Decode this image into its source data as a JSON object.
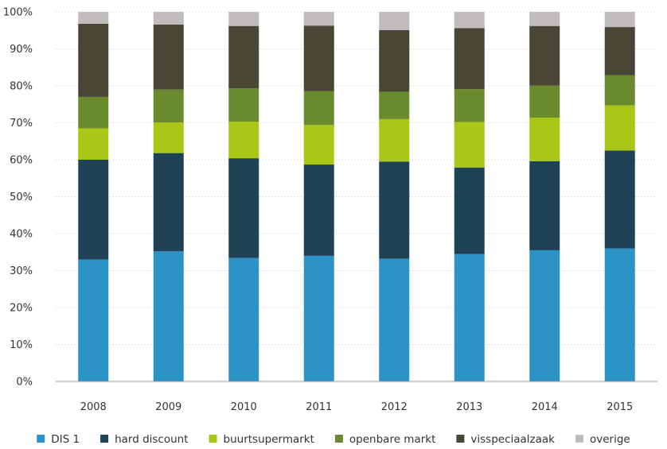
{
  "chart_data": {
    "type": "bar",
    "stacked": true,
    "categories": [
      "2008",
      "2009",
      "2010",
      "2011",
      "2012",
      "2013",
      "2014",
      "2015"
    ],
    "series": [
      {
        "name": "DIS 1",
        "color": "#2b93c5",
        "values": [
          33,
          35.2,
          33.4,
          34,
          33.2,
          34.5,
          35.5,
          36
        ]
      },
      {
        "name": "hard discount",
        "color": "#1f4257",
        "values": [
          27,
          26.6,
          27,
          24.7,
          26.3,
          23.4,
          24.1,
          26.5
        ]
      },
      {
        "name": "buurtsupermarkt",
        "color": "#a8c716",
        "values": [
          8.5,
          8.3,
          9.9,
          10.7,
          11.5,
          12.3,
          11.8,
          12.2
        ]
      },
      {
        "name": "openbare markt",
        "color": "#6a8a2e",
        "values": [
          8.5,
          8.9,
          9,
          9.2,
          7.4,
          8.9,
          8.7,
          8.2
        ]
      },
      {
        "name": "visspeciaalzaak",
        "color": "#4a4636",
        "values": [
          19.8,
          17.6,
          16.9,
          17.7,
          16.7,
          16.5,
          16.1,
          13
        ]
      },
      {
        "name": "overige",
        "color": "#c0bcbc",
        "values": [
          3.2,
          3.4,
          3.8,
          3.7,
          4.9,
          4.4,
          3.8,
          4.1
        ]
      }
    ],
    "yticks": [
      "0%",
      "10%",
      "20%",
      "30%",
      "40%",
      "50%",
      "60%",
      "70%",
      "80%",
      "90%",
      "100%"
    ],
    "ylim": [
      0,
      100
    ],
    "grid": true,
    "legend_position": "bottom"
  }
}
